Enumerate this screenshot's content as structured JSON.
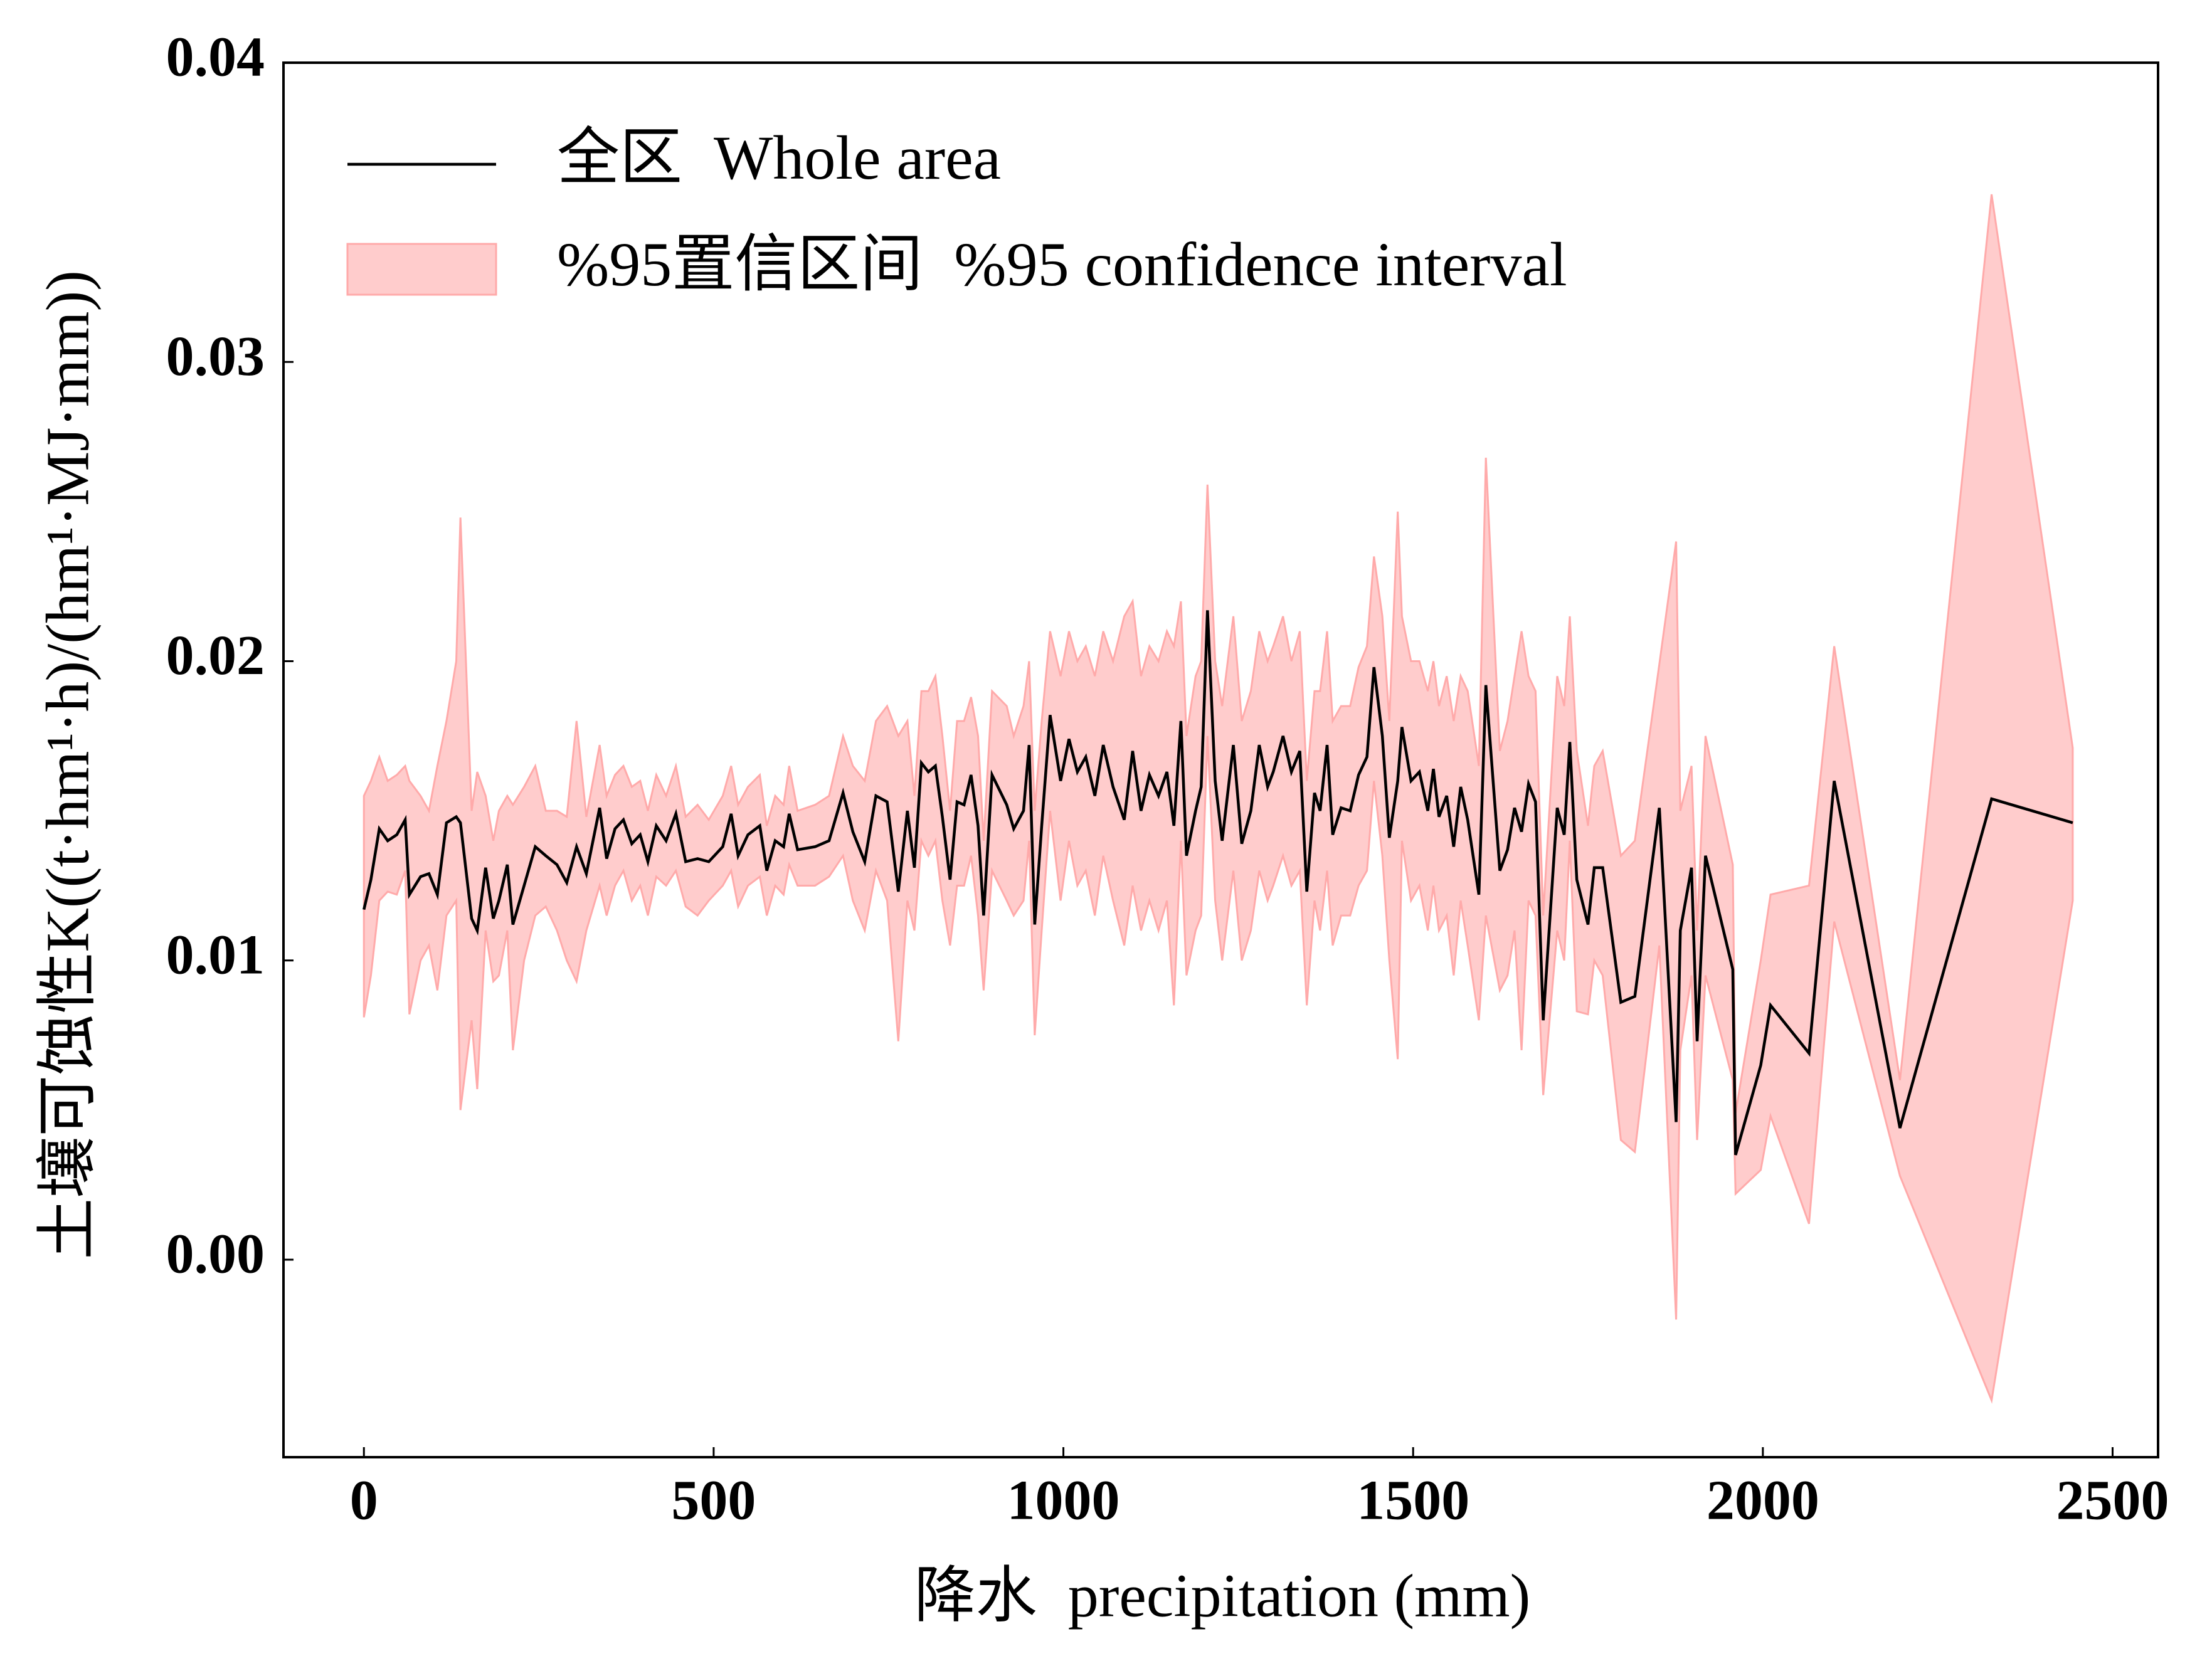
{
  "chart_data": {
    "type": "line",
    "xlabel": "降水  precipitation (mm)",
    "ylabel": "土壤可蚀性K((t·hm¹·h)/(hm¹·MJ·mm))",
    "x": [
      0,
      10,
      22,
      34,
      47,
      59,
      65,
      81,
      93,
      105,
      118,
      132,
      138,
      154,
      162,
      174,
      185,
      193,
      205,
      213,
      229,
      245,
      260,
      276,
      290,
      304,
      318,
      337,
      347,
      359,
      371,
      383,
      395,
      406,
      418,
      432,
      446,
      460,
      477,
      493,
      513,
      525,
      535,
      549,
      566,
      576,
      588,
      600,
      608,
      620,
      645,
      665,
      685,
      699,
      716,
      732,
      748,
      764,
      777,
      787,
      797,
      807,
      817,
      827,
      838,
      848,
      858,
      868,
      878,
      886,
      898,
      919,
      929,
      943,
      951,
      959,
      969,
      981,
      996,
      1008,
      1020,
      1032,
      1045,
      1057,
      1071,
      1087,
      1099,
      1111,
      1123,
      1136,
      1148,
      1158,
      1168,
      1176,
      1189,
      1197,
      1206,
      1217,
      1227,
      1243,
      1255,
      1268,
      1280,
      1292,
      1300,
      1314,
      1326,
      1338,
      1348,
      1359,
      1367,
      1377,
      1385,
      1397,
      1410,
      1422,
      1434,
      1444,
      1456,
      1466,
      1478,
      1484,
      1497,
      1509,
      1521,
      1529,
      1537,
      1548,
      1558,
      1568,
      1578,
      1594,
      1604,
      1624,
      1635,
      1645,
      1655,
      1665,
      1675,
      1686,
      1706,
      1716,
      1724,
      1734,
      1750,
      1759,
      1771,
      1797,
      1817,
      1852,
      1876,
      1882,
      1898,
      1906,
      1918,
      1957,
      1961,
      1997,
      2011,
      2066,
      2102,
      2196,
      2327,
      2443
    ],
    "series": [
      {
        "name": "全区  Whole area",
        "color": "#000000",
        "values": [
          0.0117,
          0.0127,
          0.0144,
          0.014,
          0.0142,
          0.0147,
          0.0122,
          0.0128,
          0.0129,
          0.0122,
          0.0146,
          0.0148,
          0.0146,
          0.0114,
          0.011,
          0.0131,
          0.0114,
          0.012,
          0.0132,
          0.0112,
          0.0125,
          0.0138,
          0.0135,
          0.0132,
          0.0126,
          0.0138,
          0.0129,
          0.0151,
          0.0134,
          0.0144,
          0.0147,
          0.0139,
          0.0142,
          0.0133,
          0.0145,
          0.014,
          0.0149,
          0.0133,
          0.0134,
          0.0133,
          0.0138,
          0.0149,
          0.0135,
          0.0142,
          0.0145,
          0.013,
          0.014,
          0.0138,
          0.0149,
          0.0137,
          0.0138,
          0.014,
          0.0156,
          0.0143,
          0.0133,
          0.0155,
          0.0153,
          0.0123,
          0.015,
          0.0131,
          0.0166,
          0.0163,
          0.0165,
          0.0148,
          0.0127,
          0.0153,
          0.0152,
          0.0162,
          0.0145,
          0.0115,
          0.0162,
          0.0152,
          0.0144,
          0.015,
          0.0172,
          0.0112,
          0.0145,
          0.0182,
          0.016,
          0.0174,
          0.0163,
          0.0168,
          0.0155,
          0.0172,
          0.0158,
          0.0147,
          0.017,
          0.015,
          0.0162,
          0.0155,
          0.0163,
          0.0145,
          0.018,
          0.0135,
          0.015,
          0.0158,
          0.0217,
          0.016,
          0.014,
          0.0172,
          0.0139,
          0.015,
          0.0172,
          0.0158,
          0.0163,
          0.0175,
          0.0163,
          0.017,
          0.0123,
          0.0156,
          0.015,
          0.0172,
          0.0142,
          0.0151,
          0.015,
          0.0162,
          0.0168,
          0.0198,
          0.0175,
          0.0141,
          0.016,
          0.0178,
          0.016,
          0.0163,
          0.015,
          0.0164,
          0.0148,
          0.0155,
          0.0138,
          0.0158,
          0.0147,
          0.0122,
          0.0192,
          0.013,
          0.0137,
          0.0151,
          0.0143,
          0.0159,
          0.0153,
          0.008,
          0.0151,
          0.0142,
          0.0173,
          0.0127,
          0.0112,
          0.0131,
          0.0131,
          0.0086,
          0.0088,
          0.0151,
          0.0046,
          0.011,
          0.0131,
          0.0073,
          0.0135,
          0.0097,
          0.0035,
          0.0065,
          0.0085,
          0.0069,
          0.016,
          0.0044,
          0.0154,
          0.0146
        ]
      }
    ],
    "band": {
      "name": "%95置信区间  %95 confidence interval",
      "color": "#ffcccc",
      "edge_color": "#ffaaaa",
      "lower": [
        0.0081,
        0.0095,
        0.012,
        0.0123,
        0.0122,
        0.013,
        0.0082,
        0.01,
        0.0105,
        0.009,
        0.0115,
        0.012,
        0.005,
        0.008,
        0.0057,
        0.011,
        0.0093,
        0.0095,
        0.011,
        0.007,
        0.01,
        0.0115,
        0.0118,
        0.011,
        0.01,
        0.0093,
        0.011,
        0.0125,
        0.0115,
        0.0125,
        0.013,
        0.012,
        0.0125,
        0.0115,
        0.0128,
        0.0125,
        0.013,
        0.0118,
        0.0115,
        0.012,
        0.0125,
        0.013,
        0.0118,
        0.0125,
        0.0128,
        0.0115,
        0.0125,
        0.0122,
        0.0132,
        0.0125,
        0.0125,
        0.0128,
        0.0135,
        0.012,
        0.011,
        0.013,
        0.012,
        0.0073,
        0.012,
        0.011,
        0.014,
        0.0135,
        0.014,
        0.012,
        0.0105,
        0.0125,
        0.0125,
        0.0135,
        0.0115,
        0.009,
        0.013,
        0.012,
        0.0115,
        0.012,
        0.014,
        0.0075,
        0.011,
        0.015,
        0.012,
        0.014,
        0.0125,
        0.013,
        0.0115,
        0.0135,
        0.012,
        0.0105,
        0.0125,
        0.011,
        0.012,
        0.011,
        0.012,
        0.0085,
        0.014,
        0.0095,
        0.011,
        0.0115,
        0.0175,
        0.012,
        0.01,
        0.013,
        0.01,
        0.011,
        0.013,
        0.012,
        0.0125,
        0.0135,
        0.0125,
        0.013,
        0.0085,
        0.012,
        0.011,
        0.013,
        0.0105,
        0.0115,
        0.0115,
        0.0125,
        0.013,
        0.016,
        0.0135,
        0.01,
        0.0067,
        0.014,
        0.012,
        0.0125,
        0.011,
        0.0125,
        0.011,
        0.0115,
        0.0095,
        0.012,
        0.0105,
        0.008,
        0.0115,
        0.009,
        0.0095,
        0.011,
        0.007,
        0.012,
        0.0115,
        0.0055,
        0.011,
        0.01,
        0.014,
        0.0083,
        0.0082,
        0.01,
        0.0095,
        0.004,
        0.0036,
        0.0105,
        -0.002,
        0.007,
        0.0095,
        0.004,
        0.0095,
        0.006,
        0.0022,
        0.003,
        0.0048,
        0.0012,
        0.0113,
        0.0028,
        -0.0047,
        0.012
      ],
      "upper": [
        0.0155,
        0.016,
        0.0168,
        0.016,
        0.0162,
        0.0165,
        0.016,
        0.0155,
        0.015,
        0.0165,
        0.018,
        0.02,
        0.0248,
        0.015,
        0.0163,
        0.0155,
        0.014,
        0.015,
        0.0155,
        0.0152,
        0.0158,
        0.0165,
        0.015,
        0.015,
        0.0148,
        0.018,
        0.0148,
        0.0172,
        0.0155,
        0.0162,
        0.0165,
        0.0158,
        0.016,
        0.015,
        0.0162,
        0.0155,
        0.0165,
        0.0148,
        0.0152,
        0.0147,
        0.0155,
        0.0165,
        0.0152,
        0.0158,
        0.0162,
        0.0145,
        0.0155,
        0.0152,
        0.0165,
        0.015,
        0.0152,
        0.0155,
        0.0175,
        0.0165,
        0.016,
        0.018,
        0.0185,
        0.0175,
        0.018,
        0.0155,
        0.019,
        0.019,
        0.0195,
        0.0175,
        0.015,
        0.018,
        0.018,
        0.0188,
        0.0175,
        0.014,
        0.019,
        0.0185,
        0.0175,
        0.0185,
        0.02,
        0.015,
        0.018,
        0.021,
        0.0195,
        0.021,
        0.02,
        0.0205,
        0.0195,
        0.021,
        0.02,
        0.0215,
        0.022,
        0.0195,
        0.0205,
        0.02,
        0.021,
        0.0205,
        0.022,
        0.0175,
        0.0195,
        0.02,
        0.0259,
        0.02,
        0.0185,
        0.0215,
        0.018,
        0.019,
        0.021,
        0.02,
        0.0205,
        0.0215,
        0.02,
        0.021,
        0.016,
        0.019,
        0.019,
        0.021,
        0.018,
        0.0185,
        0.0185,
        0.0198,
        0.0205,
        0.0235,
        0.0215,
        0.018,
        0.025,
        0.0215,
        0.02,
        0.02,
        0.019,
        0.02,
        0.0185,
        0.0195,
        0.018,
        0.0195,
        0.019,
        0.0165,
        0.0268,
        0.017,
        0.018,
        0.0195,
        0.021,
        0.0195,
        0.019,
        0.0115,
        0.0195,
        0.0185,
        0.0215,
        0.017,
        0.0145,
        0.0165,
        0.017,
        0.0135,
        0.014,
        0.0199,
        0.024,
        0.015,
        0.0165,
        0.011,
        0.0175,
        0.0132,
        0.0049,
        0.01,
        0.0122,
        0.0125,
        0.0205,
        0.006,
        0.0356,
        0.0171
      ]
    },
    "xlim": [
      -115,
      2565
    ],
    "ylim": [
      -0.0066,
      0.04
    ],
    "xticks": [
      0,
      500,
      1000,
      1500,
      2000,
      2500
    ],
    "yticks": [
      {
        "value": 0,
        "label": "0.00"
      },
      0.01,
      0.02,
      0.03,
      0.04
    ],
    "legend": "upper left"
  }
}
